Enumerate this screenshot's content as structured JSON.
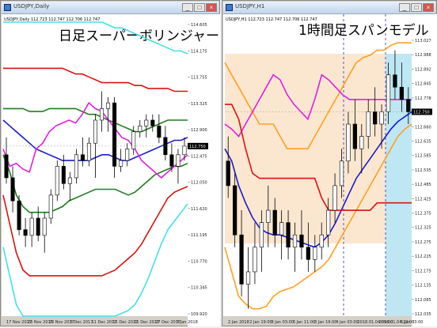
{
  "windows": [
    {
      "id": "left",
      "window_title": "USDJPY,Daily",
      "overlay_title": "日足スーパーボリンジャー",
      "symbol_info": "USDJPY,Daily 112.723 112.747 112.706 112.747",
      "price_tag": "112.747"
    },
    {
      "id": "right",
      "window_title": "USDJPY,H1",
      "overlay_title": "1時間足スパンモデル",
      "symbol_info": "USDJPY,H1 112.723 112.747 112.706 112.747",
      "price_tag": "112.747"
    }
  ],
  "buttons": {
    "minimize": "_",
    "maximize": "□",
    "close": "×"
  },
  "chart_data": [
    {
      "type": "line",
      "title": "日足スーパーボリンジャー",
      "symbol": "USDJPY",
      "timeframe": "Daily",
      "ylim": [
        109.8,
        114.9
      ],
      "yticks": [
        "114.605",
        "114.175",
        "113.755",
        "113.325",
        "112.900",
        "112.475",
        "112.050",
        "111.620",
        "111.195",
        "110.770",
        "110.345",
        "109.920"
      ],
      "xticks": [
        "17 Nov 2017",
        "23 Nov 2017",
        "29 Nov 2017",
        "5 Dec 2017",
        "11 Dec 2017",
        "15 Dec 2017",
        "21 Dec 2017",
        "27 Dec 2017",
        "3 Jan 2018"
      ],
      "candles": [
        {
          "o": 112.6,
          "h": 112.9,
          "l": 112.1,
          "c": 112.2
        },
        {
          "o": 112.2,
          "h": 112.4,
          "l": 111.6,
          "c": 111.8
        },
        {
          "o": 111.8,
          "h": 111.9,
          "l": 111.2,
          "c": 111.3
        },
        {
          "o": 111.3,
          "h": 111.5,
          "l": 111.0,
          "c": 111.2
        },
        {
          "o": 111.2,
          "h": 111.6,
          "l": 111.0,
          "c": 111.5
        },
        {
          "o": 111.5,
          "h": 111.7,
          "l": 111.1,
          "c": 111.2
        },
        {
          "o": 111.2,
          "h": 111.6,
          "l": 110.9,
          "c": 111.5
        },
        {
          "o": 111.5,
          "h": 112.0,
          "l": 111.4,
          "c": 111.9
        },
        {
          "o": 111.9,
          "h": 112.5,
          "l": 111.8,
          "c": 112.4
        },
        {
          "o": 112.4,
          "h": 112.6,
          "l": 112.0,
          "c": 112.1
        },
        {
          "o": 112.1,
          "h": 112.3,
          "l": 111.8,
          "c": 112.2
        },
        {
          "o": 112.2,
          "h": 112.7,
          "l": 112.1,
          "c": 112.6
        },
        {
          "o": 112.6,
          "h": 112.9,
          "l": 112.4,
          "c": 112.5
        },
        {
          "o": 112.5,
          "h": 112.9,
          "l": 112.4,
          "c": 112.8
        },
        {
          "o": 112.8,
          "h": 113.3,
          "l": 112.2,
          "c": 113.2
        },
        {
          "o": 113.2,
          "h": 113.7,
          "l": 113.0,
          "c": 113.4
        },
        {
          "o": 113.4,
          "h": 113.6,
          "l": 113.0,
          "c": 113.5
        },
        {
          "o": 113.5,
          "h": 113.6,
          "l": 112.2,
          "c": 112.4
        },
        {
          "o": 112.4,
          "h": 112.7,
          "l": 112.3,
          "c": 112.5
        },
        {
          "o": 112.5,
          "h": 112.8,
          "l": 112.4,
          "c": 112.7
        },
        {
          "o": 112.7,
          "h": 113.1,
          "l": 112.6,
          "c": 113.0
        },
        {
          "o": 113.0,
          "h": 113.2,
          "l": 112.9,
          "c": 113.1
        },
        {
          "o": 113.1,
          "h": 113.3,
          "l": 112.9,
          "c": 113.2
        },
        {
          "o": 113.2,
          "h": 113.3,
          "l": 113.0,
          "c": 113.1
        },
        {
          "o": 113.1,
          "h": 113.3,
          "l": 112.8,
          "c": 112.9
        },
        {
          "o": 112.9,
          "h": 113.1,
          "l": 112.5,
          "c": 112.6
        },
        {
          "o": 112.6,
          "h": 112.8,
          "l": 112.3,
          "c": 112.4
        },
        {
          "o": 112.4,
          "h": 112.7,
          "l": 112.1,
          "c": 112.6
        },
        {
          "o": 112.6,
          "h": 112.9,
          "l": 112.5,
          "c": 112.75
        }
      ],
      "series": [
        {
          "name": "",
          "color": "#40e0f0",
          "values": [
            114.9,
            114.9,
            114.9,
            114.9,
            114.9,
            114.9,
            114.9,
            114.9,
            114.9,
            114.9,
            114.9,
            114.9,
            114.9,
            114.9,
            114.9,
            114.9,
            114.85,
            114.8,
            114.8,
            114.75,
            114.7,
            114.65,
            114.6,
            114.55,
            114.5,
            114.45,
            114.4,
            114.4,
            114.35
          ]
        },
        {
          "name": "",
          "color": "#dd1111",
          "values": [
            114.1,
            114.1,
            114.1,
            114.1,
            114.1,
            114.1,
            114.1,
            114.1,
            114.1,
            114.1,
            114.05,
            114.0,
            114.0,
            113.95,
            113.9,
            113.85,
            113.85,
            113.85,
            113.85,
            113.85,
            113.8,
            113.8,
            113.75,
            113.75,
            113.75,
            113.75,
            113.7,
            113.7,
            113.7
          ]
        },
        {
          "name": "",
          "color": "#1e7d1e",
          "values": [
            113.4,
            113.4,
            113.4,
            113.4,
            113.35,
            113.35,
            113.35,
            113.4,
            113.4,
            113.4,
            113.4,
            113.4,
            113.35,
            113.3,
            113.3,
            113.25,
            113.2,
            113.15,
            113.1,
            113.05,
            113.0,
            113.0,
            113.05,
            113.1,
            113.15,
            113.2,
            113.2,
            113.2,
            113.2
          ]
        },
        {
          "name": "",
          "color": "#1a1acc",
          "values": [
            113.2,
            113.1,
            113.0,
            112.9,
            112.8,
            112.7,
            112.65,
            112.6,
            112.55,
            112.5,
            112.5,
            112.5,
            112.5,
            112.5,
            112.55,
            112.6,
            112.6,
            112.55,
            112.5,
            112.5,
            112.55,
            112.6,
            112.65,
            112.7,
            112.75,
            112.8,
            112.85,
            112.85,
            112.9
          ]
        },
        {
          "name": "",
          "color": "#1e7d1e",
          "values": [
            112.6,
            112.3,
            111.9,
            111.7,
            111.6,
            111.6,
            111.6,
            111.6,
            111.65,
            111.7,
            111.8,
            111.85,
            111.9,
            111.95,
            112.0,
            112.0,
            112.0,
            112.0,
            111.95,
            111.9,
            111.95,
            112.05,
            112.15,
            112.25,
            112.3,
            112.35,
            112.4,
            112.4,
            112.45
          ]
        },
        {
          "name": "",
          "color": "#dd1111",
          "values": [
            111.9,
            111.4,
            110.9,
            110.6,
            110.5,
            110.5,
            110.5,
            110.5,
            110.5,
            110.5,
            110.5,
            110.5,
            110.5,
            110.5,
            110.5,
            110.5,
            110.55,
            110.6,
            110.7,
            110.8,
            110.9,
            111.05,
            111.25,
            111.45,
            111.65,
            111.85,
            111.95,
            112.0,
            112.05
          ]
        },
        {
          "name": "",
          "color": "#40e0f0",
          "values": [
            111.0,
            110.5,
            110.0,
            109.8,
            109.8,
            109.8,
            109.8,
            109.8,
            109.8,
            109.8,
            109.8,
            109.8,
            109.8,
            109.8,
            109.8,
            109.8,
            109.8,
            109.8,
            109.85,
            109.9,
            110.0,
            110.2,
            110.45,
            110.75,
            111.05,
            111.3,
            111.45,
            111.6,
            111.75
          ]
        },
        {
          "name": "",
          "color": "#e020e0",
          "values": [
            112.7,
            112.4,
            112.45,
            112.35,
            112.3,
            112.7,
            112.8,
            113.0,
            113.1,
            113.15,
            113.2,
            113.15,
            113.3,
            113.5,
            113.4,
            113.35,
            113.2,
            113.05,
            112.9,
            112.85,
            112.7,
            112.5,
            112.4,
            112.3,
            112.2,
            112.3,
            112.4,
            112.5,
            112.6
          ]
        }
      ]
    },
    {
      "type": "line",
      "title": "1時間足スパンモデル",
      "symbol": "USDJPY",
      "timeframe": "H1",
      "ylim": [
        111.92,
        113.05
      ],
      "yticks": [
        "113.027",
        "112.988",
        "112.892",
        "112.845",
        "112.778",
        "112.725",
        "112.660",
        "112.635",
        "112.585",
        "112.535",
        "112.485",
        "112.425",
        "112.375",
        "112.325",
        "112.275",
        "112.225",
        "112.175",
        "112.135",
        "112.085",
        "112.035"
      ],
      "xticks": [
        "2 Jan 2018",
        "2 Jan 19:00",
        "3 Jan 03:00",
        "3 Jan 11:00",
        "3 Jan 19:00",
        "4 Jan 03:00",
        "2018.01.04 09:00",
        "2018.01.04 22:00",
        "5 Jan 03:00"
      ],
      "candles": [
        {
          "o": 112.55,
          "h": 112.65,
          "l": 112.4,
          "c": 112.45
        },
        {
          "o": 112.45,
          "h": 112.5,
          "l": 112.2,
          "c": 112.25
        },
        {
          "o": 112.25,
          "h": 112.35,
          "l": 112.0,
          "c": 112.05
        },
        {
          "o": 112.05,
          "h": 112.2,
          "l": 111.95,
          "c": 112.1
        },
        {
          "o": 112.1,
          "h": 112.3,
          "l": 112.05,
          "c": 112.2
        },
        {
          "o": 112.2,
          "h": 112.35,
          "l": 112.1,
          "c": 112.3
        },
        {
          "o": 112.3,
          "h": 112.45,
          "l": 112.2,
          "c": 112.35
        },
        {
          "o": 112.35,
          "h": 112.4,
          "l": 112.2,
          "c": 112.25
        },
        {
          "o": 112.25,
          "h": 112.35,
          "l": 112.15,
          "c": 112.3
        },
        {
          "o": 112.3,
          "h": 112.35,
          "l": 112.15,
          "c": 112.2
        },
        {
          "o": 112.2,
          "h": 112.3,
          "l": 112.1,
          "c": 112.25
        },
        {
          "o": 112.25,
          "h": 112.35,
          "l": 112.15,
          "c": 112.2
        },
        {
          "o": 112.2,
          "h": 112.3,
          "l": 112.1,
          "c": 112.15
        },
        {
          "o": 112.15,
          "h": 112.25,
          "l": 112.1,
          "c": 112.2
        },
        {
          "o": 112.2,
          "h": 112.3,
          "l": 112.15,
          "c": 112.25
        },
        {
          "o": 112.25,
          "h": 112.4,
          "l": 112.2,
          "c": 112.35
        },
        {
          "o": 112.35,
          "h": 112.5,
          "l": 112.3,
          "c": 112.45
        },
        {
          "o": 112.45,
          "h": 112.6,
          "l": 112.4,
          "c": 112.55
        },
        {
          "o": 112.55,
          "h": 112.75,
          "l": 112.5,
          "c": 112.7
        },
        {
          "o": 112.7,
          "h": 112.8,
          "l": 112.55,
          "c": 112.6
        },
        {
          "o": 112.6,
          "h": 112.7,
          "l": 112.5,
          "c": 112.65
        },
        {
          "o": 112.65,
          "h": 112.8,
          "l": 112.6,
          "c": 112.75
        },
        {
          "o": 112.75,
          "h": 112.85,
          "l": 112.65,
          "c": 112.7
        },
        {
          "o": 112.7,
          "h": 112.78,
          "l": 112.6,
          "c": 112.75
        },
        {
          "o": 112.75,
          "h": 112.95,
          "l": 112.7,
          "c": 112.9
        },
        {
          "o": 112.9,
          "h": 113.0,
          "l": 112.8,
          "c": 112.85
        },
        {
          "o": 112.85,
          "h": 112.95,
          "l": 112.75,
          "c": 112.8
        },
        {
          "o": 112.8,
          "h": 112.85,
          "l": 112.7,
          "c": 112.75
        }
      ],
      "series": [
        {
          "name": "",
          "color": "#ffa020",
          "values": [
            112.95,
            112.9,
            112.85,
            112.8,
            112.75,
            112.7,
            112.7,
            112.7,
            112.65,
            112.6,
            112.6,
            112.6,
            112.6,
            112.65,
            112.7,
            112.75,
            112.8,
            112.85,
            112.9,
            112.95,
            112.97,
            112.98,
            113.0,
            113.0,
            113.02,
            113.03,
            113.03,
            113.03
          ]
        },
        {
          "name": "",
          "color": "#ffa020",
          "values": [
            112.2,
            112.1,
            112.0,
            111.97,
            111.95,
            111.95,
            111.96,
            112.0,
            112.02,
            112.03,
            112.04,
            112.06,
            112.08,
            112.1,
            112.12,
            112.15,
            112.2,
            112.25,
            112.3,
            112.35,
            112.4,
            112.45,
            112.5,
            112.55,
            112.6,
            112.65,
            112.68,
            112.7
          ]
        },
        {
          "name": "",
          "color": "#1a1acc",
          "values": [
            112.6,
            112.55,
            112.45,
            112.38,
            112.32,
            112.28,
            112.26,
            112.25,
            112.25,
            112.24,
            112.23,
            112.22,
            112.21,
            112.2,
            112.22,
            112.25,
            112.3,
            112.36,
            112.42,
            112.48,
            112.52,
            112.56,
            112.6,
            112.64,
            112.68,
            112.71,
            112.73,
            112.75
          ]
        },
        {
          "name": "",
          "color": "#e020e0",
          "values": [
            112.7,
            112.68,
            112.65,
            112.7,
            112.75,
            112.8,
            112.85,
            112.9,
            112.88,
            112.82,
            112.78,
            112.75,
            112.72,
            112.8,
            112.9,
            112.88,
            112.85,
            112.82,
            112.8,
            112.8,
            112.8,
            112.8,
            112.8,
            112.8,
            112.8,
            112.8,
            112.8,
            112.8
          ]
        },
        {
          "name": "",
          "color": "#dd1111",
          "values": [
            112.78,
            112.78,
            112.72,
            112.6,
            112.5,
            112.48,
            112.48,
            112.48,
            112.48,
            112.48,
            112.48,
            112.48,
            112.48,
            112.48,
            112.4,
            112.35,
            112.35,
            112.35,
            112.35,
            112.35,
            112.35,
            112.35,
            112.38,
            112.38,
            112.38,
            112.38,
            112.38,
            112.38
          ]
        }
      ]
    }
  ]
}
